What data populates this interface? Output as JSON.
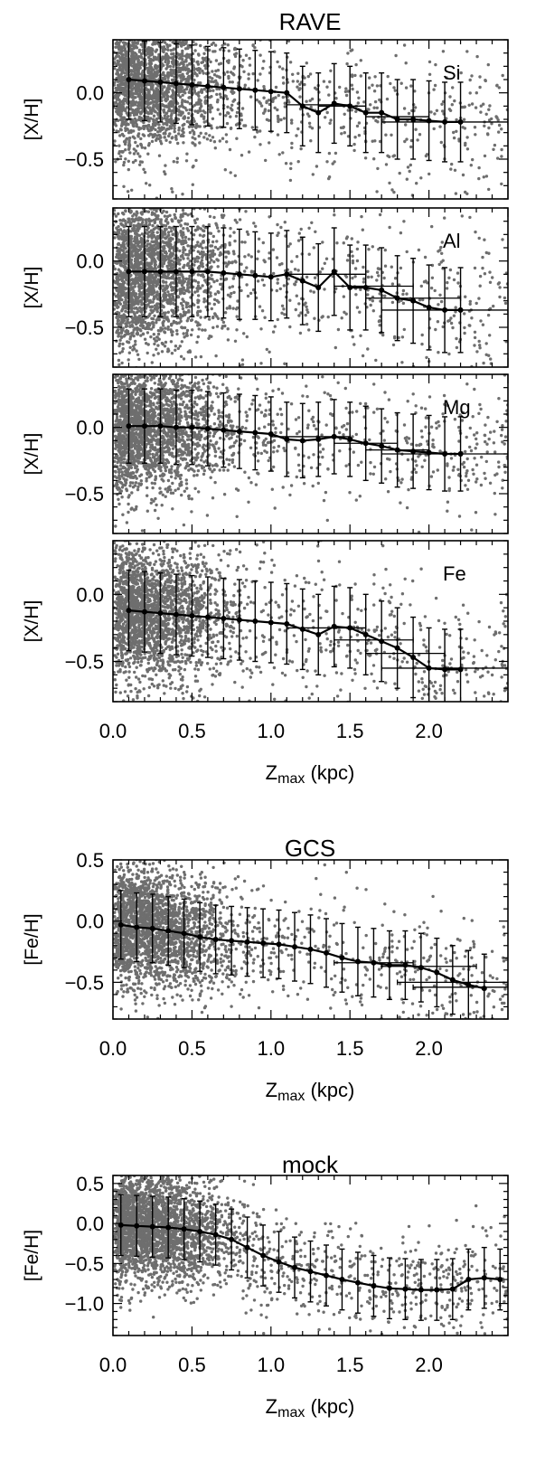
{
  "colors": {
    "points": "#6e6e6e",
    "line": "#000000",
    "frame": "#000000",
    "background": "#ffffff"
  },
  "figure_titles": {
    "rave": "RAVE",
    "gcs": "GCS",
    "mock": "mock"
  },
  "chart_data": [
    {
      "id": "rave-si",
      "type": "scatter",
      "group": "RAVE",
      "title": "RAVE",
      "element_label": "Si",
      "ylabel": "[X/H]",
      "xlabel": "",
      "xlim": [
        0,
        2.5
      ],
      "ylim": [
        -0.8,
        0.4
      ],
      "xticks": [],
      "yticks": [
        "0.0",
        "−0.5"
      ],
      "ytick_values": [
        0,
        -0.5
      ],
      "grid": false,
      "series": [
        {
          "x": [
            0.1,
            0.2,
            0.3,
            0.4,
            0.5,
            0.6,
            0.7,
            0.8,
            0.9,
            1.0,
            1.1,
            1.2,
            1.3,
            1.4,
            1.5,
            1.6,
            1.7,
            1.8,
            1.9,
            2.0,
            2.1,
            2.2
          ],
          "y": [
            0.1,
            0.09,
            0.08,
            0.07,
            0.06,
            0.05,
            0.04,
            0.03,
            0.02,
            0.01,
            0.0,
            -0.1,
            -0.15,
            -0.08,
            -0.1,
            -0.15,
            -0.15,
            -0.2,
            -0.2,
            -0.21,
            -0.22,
            -0.22
          ],
          "yerr": [
            0.3,
            0.3,
            0.3,
            0.3,
            0.3,
            0.3,
            0.3,
            0.3,
            0.3,
            0.3,
            0.3,
            0.3,
            0.3,
            0.3,
            0.3,
            0.3,
            0.3,
            0.3,
            0.3,
            0.3,
            0.3,
            0.3
          ]
        }
      ],
      "xbins": [
        {
          "x0": 1.1,
          "x1": 1.5,
          "y": -0.09
        },
        {
          "x0": 1.3,
          "x1": 1.6,
          "y": -0.1
        },
        {
          "x0": 1.6,
          "x1": 2.0,
          "y": -0.18
        },
        {
          "x0": 1.7,
          "x1": 2.5,
          "y": -0.22
        }
      ]
    },
    {
      "id": "rave-al",
      "type": "scatter",
      "group": "RAVE",
      "title": "",
      "element_label": "Al",
      "ylabel": "[X/H]",
      "xlabel": "",
      "xlim": [
        0,
        2.5
      ],
      "ylim": [
        -0.8,
        0.4
      ],
      "xticks": [],
      "yticks": [
        "0.0",
        "−0.5"
      ],
      "ytick_values": [
        0,
        -0.5
      ],
      "grid": false,
      "series": [
        {
          "x": [
            0.1,
            0.2,
            0.3,
            0.4,
            0.5,
            0.6,
            0.7,
            0.8,
            0.9,
            1.0,
            1.1,
            1.2,
            1.3,
            1.4,
            1.5,
            1.6,
            1.7,
            1.8,
            1.9,
            2.0,
            2.1,
            2.2
          ],
          "y": [
            -0.08,
            -0.08,
            -0.08,
            -0.08,
            -0.08,
            -0.08,
            -0.09,
            -0.1,
            -0.11,
            -0.12,
            -0.1,
            -0.15,
            -0.2,
            -0.08,
            -0.2,
            -0.2,
            -0.22,
            -0.28,
            -0.3,
            -0.35,
            -0.37,
            -0.37
          ],
          "yerr": [
            0.34,
            0.34,
            0.34,
            0.34,
            0.34,
            0.34,
            0.34,
            0.34,
            0.33,
            0.33,
            0.33,
            0.33,
            0.33,
            0.33,
            0.32,
            0.32,
            0.32,
            0.32,
            0.32,
            0.32,
            0.32,
            0.32
          ]
        }
      ],
      "xbins": [
        {
          "x0": 1.1,
          "x1": 1.6,
          "y": -0.1
        },
        {
          "x0": 1.4,
          "x1": 1.9,
          "y": -0.19
        },
        {
          "x0": 1.6,
          "x1": 2.2,
          "y": -0.28
        },
        {
          "x0": 1.7,
          "x1": 2.5,
          "y": -0.37
        }
      ]
    },
    {
      "id": "rave-mg",
      "type": "scatter",
      "group": "RAVE",
      "title": "",
      "element_label": "Mg",
      "ylabel": "[X/H]",
      "xlabel": "",
      "xlim": [
        0,
        2.5
      ],
      "ylim": [
        -0.8,
        0.4
      ],
      "xticks": [],
      "yticks": [
        "0.0",
        "−0.5"
      ],
      "ytick_values": [
        0,
        -0.5
      ],
      "grid": false,
      "series": [
        {
          "x": [
            0.1,
            0.2,
            0.3,
            0.4,
            0.5,
            0.6,
            0.7,
            0.8,
            0.9,
            1.0,
            1.1,
            1.2,
            1.3,
            1.4,
            1.5,
            1.6,
            1.7,
            1.8,
            1.9,
            2.0,
            2.1,
            2.2
          ],
          "y": [
            0.01,
            0.01,
            0.01,
            0.0,
            0.0,
            -0.01,
            -0.02,
            -0.03,
            -0.04,
            -0.05,
            -0.09,
            -0.1,
            -0.09,
            -0.07,
            -0.09,
            -0.12,
            -0.14,
            -0.17,
            -0.18,
            -0.19,
            -0.2,
            -0.2
          ],
          "yerr": [
            0.28,
            0.28,
            0.28,
            0.28,
            0.28,
            0.28,
            0.28,
            0.28,
            0.28,
            0.28,
            0.28,
            0.28,
            0.28,
            0.28,
            0.28,
            0.28,
            0.28,
            0.28,
            0.28,
            0.28,
            0.28,
            0.28
          ]
        }
      ],
      "xbins": [
        {
          "x0": 1.0,
          "x1": 1.5,
          "y": -0.07
        },
        {
          "x0": 1.4,
          "x1": 1.8,
          "y": -0.12
        },
        {
          "x0": 1.6,
          "x1": 2.0,
          "y": -0.17
        },
        {
          "x0": 1.7,
          "x1": 2.5,
          "y": -0.2
        }
      ]
    },
    {
      "id": "rave-fe",
      "type": "scatter",
      "group": "RAVE",
      "title": "",
      "element_label": "Fe",
      "ylabel": "[X/H]",
      "xlabel": "Z",
      "xlabel_sub": "max",
      "xlabel_unit": "(kpc)",
      "xlim": [
        0,
        2.5
      ],
      "ylim": [
        -0.8,
        0.4
      ],
      "xticks": [
        "0.0",
        "0.5",
        "1.0",
        "1.5",
        "2.0"
      ],
      "xtick_values": [
        0,
        0.5,
        1.0,
        1.5,
        2.0
      ],
      "yticks": [
        "0.0",
        "−0.5"
      ],
      "ytick_values": [
        0,
        -0.5
      ],
      "grid": false,
      "series": [
        {
          "x": [
            0.1,
            0.2,
            0.3,
            0.4,
            0.5,
            0.6,
            0.7,
            0.8,
            0.9,
            1.0,
            1.1,
            1.2,
            1.3,
            1.4,
            1.5,
            1.6,
            1.7,
            1.8,
            1.9,
            2.0,
            2.1,
            2.2
          ],
          "y": [
            -0.12,
            -0.13,
            -0.14,
            -0.15,
            -0.16,
            -0.17,
            -0.18,
            -0.19,
            -0.2,
            -0.21,
            -0.22,
            -0.26,
            -0.3,
            -0.24,
            -0.25,
            -0.3,
            -0.35,
            -0.4,
            -0.47,
            -0.55,
            -0.56,
            -0.56
          ],
          "yerr": [
            0.3,
            0.3,
            0.3,
            0.3,
            0.3,
            0.3,
            0.3,
            0.3,
            0.3,
            0.3,
            0.3,
            0.3,
            0.3,
            0.3,
            0.3,
            0.3,
            0.3,
            0.3,
            0.3,
            0.3,
            0.3,
            0.3
          ]
        }
      ],
      "xbins": [
        {
          "x0": 1.1,
          "x1": 1.6,
          "y": -0.25
        },
        {
          "x0": 1.4,
          "x1": 1.9,
          "y": -0.34
        },
        {
          "x0": 1.6,
          "x1": 2.1,
          "y": -0.44
        },
        {
          "x0": 1.7,
          "x1": 2.5,
          "y": -0.55
        }
      ]
    },
    {
      "id": "gcs",
      "type": "scatter",
      "group": "GCS",
      "title": "GCS",
      "element_label": "",
      "ylabel": "[Fe/H]",
      "xlabel": "Z",
      "xlabel_sub": "max",
      "xlabel_unit": "(kpc)",
      "xlim": [
        0,
        2.5
      ],
      "ylim": [
        -0.8,
        0.5
      ],
      "xticks": [
        "0.0",
        "0.5",
        "1.0",
        "1.5",
        "2.0"
      ],
      "xtick_values": [
        0,
        0.5,
        1.0,
        1.5,
        2.0
      ],
      "yticks": [
        "0.5",
        "0.0",
        "−0.5"
      ],
      "ytick_values": [
        0.5,
        0,
        -0.5
      ],
      "grid": false,
      "series": [
        {
          "x": [
            0.05,
            0.15,
            0.25,
            0.35,
            0.45,
            0.55,
            0.65,
            0.75,
            0.85,
            0.95,
            1.05,
            1.15,
            1.25,
            1.35,
            1.45,
            1.55,
            1.65,
            1.75,
            1.85,
            1.95,
            2.05,
            2.15,
            2.25,
            2.35
          ],
          "y": [
            -0.03,
            -0.05,
            -0.06,
            -0.08,
            -0.1,
            -0.13,
            -0.15,
            -0.16,
            -0.17,
            -0.18,
            -0.19,
            -0.21,
            -0.23,
            -0.26,
            -0.3,
            -0.33,
            -0.34,
            -0.36,
            -0.36,
            -0.38,
            -0.42,
            -0.48,
            -0.52,
            -0.55
          ],
          "yerr": [
            0.28,
            0.28,
            0.28,
            0.28,
            0.28,
            0.28,
            0.28,
            0.28,
            0.28,
            0.28,
            0.28,
            0.28,
            0.28,
            0.28,
            0.28,
            0.28,
            0.28,
            0.28,
            0.28,
            0.28,
            0.28,
            0.28,
            0.28,
            0.28
          ]
        }
      ],
      "xbins": [
        {
          "x0": 1.4,
          "x1": 1.9,
          "y": -0.34
        },
        {
          "x0": 1.7,
          "x1": 2.3,
          "y": -0.37
        },
        {
          "x0": 1.8,
          "x1": 2.5,
          "y": -0.5
        },
        {
          "x0": 1.9,
          "x1": 2.5,
          "y": -0.54
        }
      ]
    },
    {
      "id": "mock",
      "type": "scatter",
      "group": "mock",
      "title": "mock",
      "element_label": "",
      "ylabel": "[Fe/H]",
      "xlabel": "Z",
      "xlabel_sub": "max",
      "xlabel_unit": "(kpc)",
      "xlim": [
        0,
        2.5
      ],
      "ylim": [
        -1.4,
        0.6
      ],
      "xticks": [
        "0.0",
        "0.5",
        "1.0",
        "1.5",
        "2.0"
      ],
      "xtick_values": [
        0,
        0.5,
        1.0,
        1.5,
        2.0
      ],
      "yticks": [
        "0.5",
        "0.0",
        "−0.5",
        "−1.0"
      ],
      "ytick_values": [
        0.5,
        0,
        -0.5,
        -1.0
      ],
      "grid": false,
      "series": [
        {
          "x": [
            0.05,
            0.15,
            0.25,
            0.35,
            0.45,
            0.55,
            0.65,
            0.75,
            0.85,
            0.95,
            1.05,
            1.15,
            1.25,
            1.35,
            1.45,
            1.55,
            1.65,
            1.75,
            1.85,
            1.95,
            2.05,
            2.15,
            2.25,
            2.35,
            2.45
          ],
          "y": [
            -0.02,
            -0.03,
            -0.04,
            -0.05,
            -0.07,
            -0.1,
            -0.14,
            -0.2,
            -0.3,
            -0.4,
            -0.48,
            -0.55,
            -0.6,
            -0.65,
            -0.7,
            -0.74,
            -0.78,
            -0.81,
            -0.82,
            -0.83,
            -0.83,
            -0.82,
            -0.7,
            -0.68,
            -0.7
          ],
          "yerr": [
            0.38,
            0.38,
            0.38,
            0.38,
            0.38,
            0.38,
            0.38,
            0.38,
            0.38,
            0.38,
            0.38,
            0.38,
            0.38,
            0.38,
            0.38,
            0.38,
            0.38,
            0.38,
            0.38,
            0.38,
            0.38,
            0.38,
            0.38,
            0.38,
            0.38
          ]
        }
      ],
      "xbins": []
    }
  ]
}
